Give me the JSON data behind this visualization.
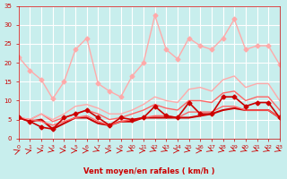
{
  "background_color": "#c8eeed",
  "grid_color": "#ffffff",
  "xlabel": "Vent moyen/en rafales ( km/h )",
  "xlabel_color": "#cc0000",
  "tick_color": "#cc0000",
  "xlim": [
    0,
    23
  ],
  "ylim": [
    0,
    35
  ],
  "yticks": [
    0,
    5,
    10,
    15,
    20,
    25,
    30,
    35
  ],
  "xticks": [
    0,
    1,
    2,
    3,
    4,
    5,
    6,
    7,
    8,
    9,
    10,
    11,
    12,
    13,
    14,
    15,
    16,
    17,
    18,
    19,
    20,
    21,
    22,
    23
  ],
  "series": [
    {
      "y": [
        21.5,
        18.0,
        15.5,
        10.5,
        15.0,
        23.5,
        26.5,
        14.5,
        12.5,
        11.0,
        16.5,
        20.0,
        32.5,
        23.5,
        21.0,
        26.5,
        24.5,
        23.5,
        26.5,
        31.5,
        23.5,
        24.5,
        24.5,
        19.5
      ],
      "color": "#ffaaaa",
      "lw": 1.0,
      "marker": "D",
      "ms": 2.5,
      "zorder": 2
    },
    {
      "y": [
        5.5,
        4.5,
        3.0,
        2.5,
        5.5,
        6.5,
        7.5,
        5.5,
        3.5,
        5.5,
        5.0,
        5.5,
        8.5,
        6.0,
        5.5,
        9.5,
        6.5,
        6.5,
        11.0,
        11.0,
        8.5,
        9.5,
        9.5,
        5.5
      ],
      "color": "#cc0000",
      "lw": 1.2,
      "marker": "D",
      "ms": 2.5,
      "zorder": 3
    },
    {
      "y": [
        5.5,
        4.5,
        5.0,
        2.5,
        4.0,
        5.5,
        5.5,
        4.0,
        3.5,
        4.5,
        4.5,
        5.5,
        5.5,
        5.5,
        5.5,
        5.5,
        6.0,
        6.5,
        7.5,
        8.0,
        7.5,
        7.5,
        7.5,
        5.5
      ],
      "color": "#cc0000",
      "lw": 1.5,
      "marker": null,
      "ms": 0,
      "zorder": 2
    },
    {
      "y": [
        5.5,
        5.0,
        4.5,
        3.5,
        4.5,
        5.5,
        6.0,
        4.5,
        3.5,
        4.5,
        5.0,
        5.5,
        6.0,
        6.0,
        5.5,
        7.0,
        7.0,
        7.0,
        8.5,
        8.5,
        7.5,
        7.5,
        7.5,
        5.5
      ],
      "color": "#ff6666",
      "lw": 1.0,
      "marker": null,
      "ms": 0,
      "zorder": 2
    },
    {
      "y": [
        5.5,
        5.0,
        6.5,
        4.5,
        5.5,
        6.5,
        7.5,
        6.5,
        5.0,
        5.5,
        6.5,
        7.5,
        9.0,
        8.0,
        7.5,
        10.0,
        10.0,
        9.5,
        12.0,
        12.5,
        10.0,
        11.0,
        11.0,
        7.5
      ],
      "color": "#ff6666",
      "lw": 1.0,
      "marker": null,
      "ms": 0,
      "zorder": 2
    },
    {
      "y": [
        5.5,
        5.0,
        6.5,
        5.0,
        6.5,
        8.5,
        9.0,
        8.0,
        6.5,
        6.5,
        7.5,
        9.0,
        11.0,
        10.0,
        9.5,
        13.0,
        13.5,
        12.5,
        15.5,
        16.5,
        13.5,
        14.5,
        14.5,
        10.0
      ],
      "color": "#ffaaaa",
      "lw": 1.0,
      "marker": null,
      "ms": 0,
      "zorder": 2
    }
  ],
  "arrow_color": "#cc0000",
  "arrow_angles": [
    45,
    30,
    0,
    -30,
    0,
    0,
    0,
    -45,
    0,
    0,
    -45,
    0,
    -45,
    -45,
    0,
    -30,
    0,
    -45,
    -30,
    -45,
    -45,
    -45,
    -45,
    -45
  ]
}
